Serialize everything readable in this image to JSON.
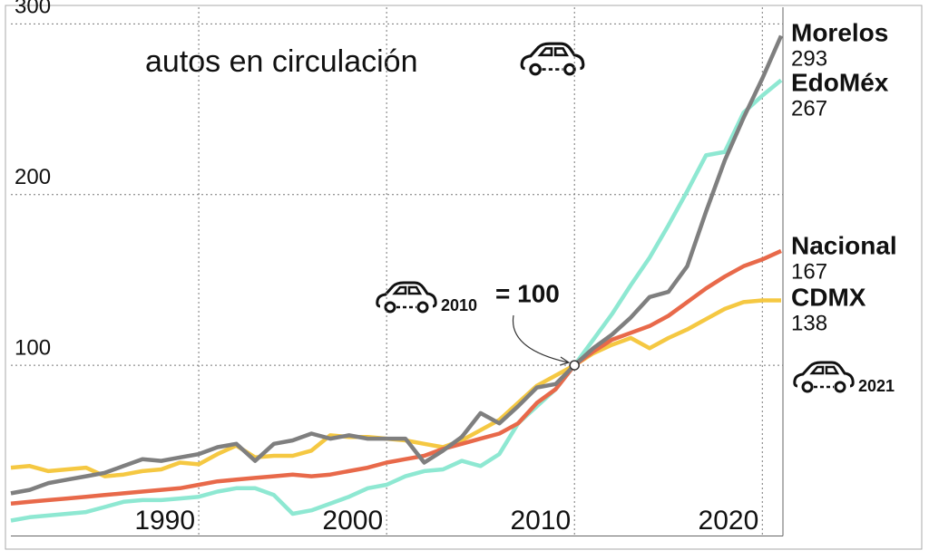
{
  "chart_data": {
    "type": "line",
    "title": "autos en circulación",
    "x": [
      1980,
      1981,
      1982,
      1983,
      1984,
      1985,
      1986,
      1987,
      1988,
      1989,
      1990,
      1991,
      1992,
      1993,
      1994,
      1995,
      1996,
      1997,
      1998,
      1999,
      2000,
      2001,
      2002,
      2003,
      2004,
      2005,
      2006,
      2007,
      2008,
      2009,
      2010,
      2011,
      2012,
      2013,
      2014,
      2015,
      2016,
      2017,
      2018,
      2019,
      2020,
      2021
    ],
    "series": [
      {
        "name": "CDMX",
        "color": "#f5c842",
        "values": [
          40,
          41,
          38,
          39,
          40,
          35,
          36,
          38,
          39,
          43,
          42,
          48,
          53,
          46,
          47,
          47,
          50,
          59,
          58,
          58,
          57,
          56,
          54,
          52,
          56,
          62,
          68,
          78,
          88,
          94,
          100,
          107,
          112,
          116,
          110,
          116,
          121,
          127,
          133,
          137,
          138,
          138
        ]
      },
      {
        "name": "EdoMéx",
        "color": "#8ee8d2",
        "values": [
          9,
          11,
          12,
          13,
          14,
          17,
          20,
          21,
          21,
          22,
          23,
          26,
          28,
          28,
          24,
          13,
          15,
          19,
          23,
          28,
          30,
          35,
          38,
          39,
          44,
          41,
          48,
          66,
          76,
          86,
          100,
          115,
          130,
          147,
          163,
          182,
          202,
          223,
          225,
          248,
          258,
          267
        ]
      },
      {
        "name": "Nacional",
        "color": "#e8694a",
        "values": [
          19,
          20,
          21,
          22,
          23,
          24,
          25,
          26,
          27,
          28,
          30,
          32,
          33,
          34,
          35,
          36,
          35,
          36,
          38,
          40,
          43,
          45,
          47,
          51,
          54,
          57,
          60,
          66,
          78,
          86,
          100,
          108,
          115,
          119,
          123,
          129,
          137,
          145,
          152,
          158,
          162,
          167
        ]
      },
      {
        "name": "Morelos",
        "color": "#7f7f7f",
        "values": [
          25,
          27,
          31,
          33,
          35,
          37,
          41,
          45,
          44,
          46,
          48,
          52,
          54,
          44,
          54,
          56,
          60,
          57,
          59,
          57,
          57,
          57,
          43,
          50,
          58,
          72,
          66,
          76,
          87,
          89,
          100,
          110,
          118,
          128,
          140,
          143,
          158,
          190,
          220,
          245,
          268,
          293
        ]
      }
    ],
    "xlim": [
      1980,
      2021
    ],
    "xticks": [
      1990,
      2000,
      2010,
      2020
    ],
    "ylim": [
      0,
      310
    ],
    "yticks": [
      100,
      200,
      300
    ],
    "grid": true,
    "annotations": {
      "base_year": "2010",
      "base_value": "= 100",
      "end_year": "2021"
    }
  }
}
